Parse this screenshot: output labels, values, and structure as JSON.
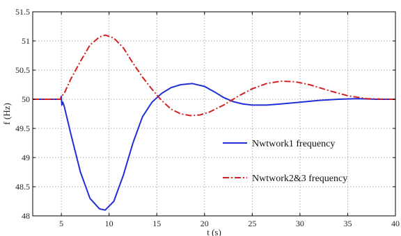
{
  "chart_data": {
    "type": "line",
    "title": "",
    "xlabel": "t (s)",
    "ylabel": "f (Hz)",
    "xlim": [
      2,
      40
    ],
    "ylim": [
      48,
      51.5
    ],
    "grid": true,
    "legend_position": "center-right",
    "x_ticks": [
      5,
      10,
      15,
      20,
      25,
      30,
      35,
      40
    ],
    "y_ticks": [
      48,
      48.5,
      49,
      49.5,
      50,
      50.5,
      51,
      51.5
    ],
    "x_tick_labels": [
      "5",
      "10",
      "15",
      "20",
      "25",
      "30",
      "35",
      "40"
    ],
    "y_tick_labels": [
      "48",
      "48.5",
      "49",
      "49.5",
      "50",
      "50.5",
      "51",
      "51.5"
    ],
    "series": [
      {
        "name": "Nwtwork1 frequency",
        "color": "#1f2fd6",
        "line_style": "solid",
        "points": [
          [
            2,
            50.0
          ],
          [
            4.9,
            50.0
          ],
          [
            5.0,
            50.05
          ],
          [
            5.05,
            49.9
          ],
          [
            5.15,
            49.95
          ],
          [
            5.3,
            49.88
          ],
          [
            6,
            49.4
          ],
          [
            7,
            48.75
          ],
          [
            8,
            48.3
          ],
          [
            9,
            48.12
          ],
          [
            9.6,
            48.1
          ],
          [
            10.5,
            48.25
          ],
          [
            11.5,
            48.7
          ],
          [
            12.5,
            49.25
          ],
          [
            13.5,
            49.7
          ],
          [
            14.5,
            49.95
          ],
          [
            15.5,
            50.1
          ],
          [
            16.5,
            50.2
          ],
          [
            17.5,
            50.25
          ],
          [
            18.7,
            50.27
          ],
          [
            20,
            50.22
          ],
          [
            21,
            50.13
          ],
          [
            22,
            50.03
          ],
          [
            23,
            49.96
          ],
          [
            24,
            49.92
          ],
          [
            25,
            49.9
          ],
          [
            26.5,
            49.9
          ],
          [
            28,
            49.92
          ],
          [
            30,
            49.95
          ],
          [
            32,
            49.98
          ],
          [
            34,
            50.0
          ],
          [
            36,
            50.01
          ],
          [
            38,
            50.0
          ],
          [
            40,
            50.0
          ]
        ]
      },
      {
        "name": "Nwtwork2&3 frequency",
        "color": "#d42020",
        "line_style": "dashdot",
        "points": [
          [
            2,
            50.0
          ],
          [
            4.9,
            50.0
          ],
          [
            5.0,
            50.05
          ],
          [
            5.3,
            50.1
          ],
          [
            6,
            50.35
          ],
          [
            7,
            50.65
          ],
          [
            8,
            50.93
          ],
          [
            9,
            51.07
          ],
          [
            9.6,
            51.1
          ],
          [
            10.5,
            51.05
          ],
          [
            11.5,
            50.88
          ],
          [
            12.5,
            50.62
          ],
          [
            13.5,
            50.38
          ],
          [
            14.5,
            50.17
          ],
          [
            15.5,
            49.98
          ],
          [
            16.5,
            49.83
          ],
          [
            17.5,
            49.75
          ],
          [
            18.5,
            49.72
          ],
          [
            19.5,
            49.73
          ],
          [
            20.5,
            49.78
          ],
          [
            22,
            49.9
          ],
          [
            23.5,
            50.05
          ],
          [
            25,
            50.18
          ],
          [
            26.5,
            50.27
          ],
          [
            28,
            50.31
          ],
          [
            29.5,
            50.3
          ],
          [
            31,
            50.25
          ],
          [
            33,
            50.15
          ],
          [
            35,
            50.06
          ],
          [
            37,
            50.01
          ],
          [
            39,
            50.0
          ],
          [
            40,
            50.0
          ]
        ]
      }
    ]
  }
}
